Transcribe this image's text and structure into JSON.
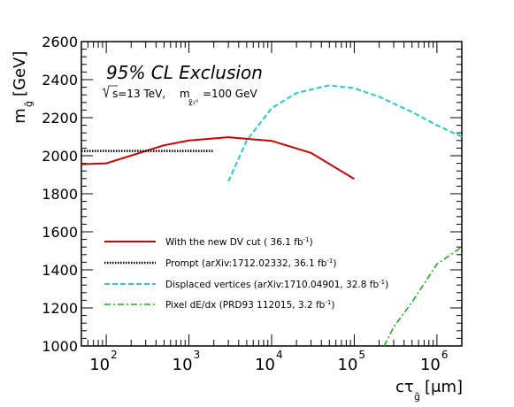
{
  "chart_data": {
    "type": "line",
    "title": "95% CL Exclusion",
    "subtitle": {
      "energy": "s=13 TeV,",
      "mass_prefix": "m",
      "mass_value": "=100 GeV"
    },
    "xlabel": {
      "main": "cτ",
      "sub": "g̃",
      "unit": "[μm]"
    },
    "ylabel": {
      "main": "m",
      "sub": "g̃",
      "unit": "[GeV]"
    },
    "xscale": "log",
    "xlim": [
      50,
      2000000
    ],
    "ylim": [
      1000,
      2600
    ],
    "grid": false,
    "legend_position": "bottom-left",
    "x_ticks": [
      {
        "value": 100,
        "base": "10",
        "exp": "2"
      },
      {
        "value": 1000,
        "base": "10",
        "exp": "3"
      },
      {
        "value": 10000,
        "base": "10",
        "exp": "4"
      },
      {
        "value": 100000,
        "base": "10",
        "exp": "5"
      },
      {
        "value": 1000000,
        "base": "10",
        "exp": "6"
      }
    ],
    "y_ticks": [
      1000,
      1200,
      1400,
      1600,
      1800,
      2000,
      2200,
      2400,
      2600
    ],
    "series": [
      {
        "name": "With the new DV cut ( 36.1 fb",
        "lumi_exp": "-1",
        "name_end": ")",
        "color": "#cc0000",
        "dash": "solid",
        "x": [
          50,
          100,
          500,
          1000,
          3000,
          10000,
          30000,
          100000
        ],
        "y": [
          1955,
          1960,
          2055,
          2080,
          2097,
          2078,
          2015,
          1878
        ]
      },
      {
        "name": "Prompt (arXiv:1712.02332, 36.1 fb",
        "lumi_exp": "-1",
        "name_end": ")",
        "color": "#000000",
        "dash": "dotted",
        "x": [
          50,
          2000
        ],
        "y": [
          2025,
          2025
        ]
      },
      {
        "name": "Displaced vertices (arXiv:1710.04901, 32.8 fb",
        "lumi_exp": "-1",
        "name_end": ")",
        "color": "#22cccc",
        "dash": "dashed",
        "x": [
          3000,
          5000,
          10000,
          20000,
          50000,
          100000,
          200000,
          500000,
          1000000,
          2000000
        ],
        "y": [
          1865,
          2080,
          2250,
          2330,
          2370,
          2355,
          2310,
          2230,
          2160,
          2100
        ]
      },
      {
        "name": "Pixel dE/dx (PRD93 112015, 3.2 fb",
        "lumi_exp": "-1",
        "name_end": ")",
        "color": "#22aa22",
        "dash": "dashdot",
        "x": [
          230000,
          300000,
          500000,
          1000000,
          2000000
        ],
        "y": [
          1000,
          1100,
          1230,
          1430,
          1520
        ]
      }
    ]
  }
}
